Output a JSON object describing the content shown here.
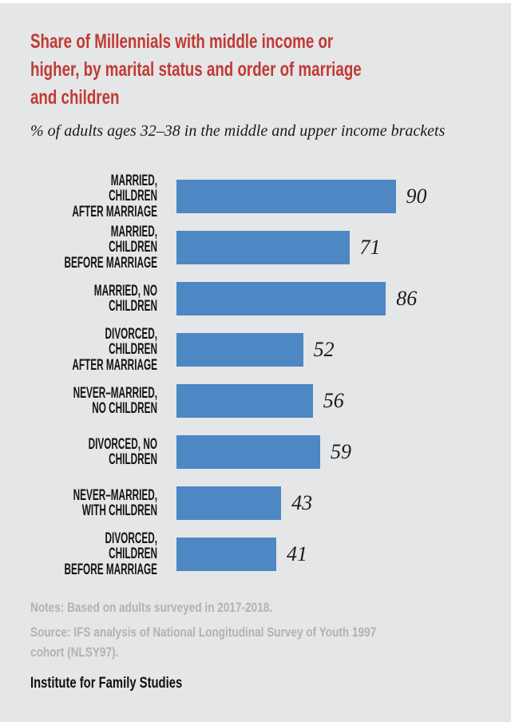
{
  "colors": {
    "background": "#e5e6e7",
    "top_strip": "#ffffff",
    "title": "#c03a35",
    "bar": "#4d87c4",
    "label_text": "#141414",
    "notes_text": "#b1b2b4"
  },
  "title": "Share of Millennials with middle income or\nhigher, by marital status and order of marriage\nand children",
  "subtitle": "% of adults ages 32–38 in the middle and upper income brackets",
  "chart_data": {
    "type": "bar",
    "orientation": "horizontal",
    "title": "Share of Millennials with middle income or higher, by marital status and order of marriage and children",
    "subtitle": "% of adults ages 32–38 in the middle and upper income brackets",
    "categories": [
      "MARRIED, CHILDREN\nAFTER MARRIAGE",
      "MARRIED, CHILDREN\nBEFORE MARRIAGE",
      "MARRIED, NO CHILDREN",
      "DIVORCED, CHILDREN\nAFTER MARRIAGE",
      "NEVER–MARRIED,\nNO CHILDREN",
      "DIVORCED, NO CHILDREN",
      "NEVER–MARRIED,\nWITH CHILDREN",
      "DIVORCED, CHILDREN\nBEFORE MARRIAGE"
    ],
    "values": [
      90,
      71,
      86,
      52,
      56,
      59,
      43,
      41
    ],
    "xlabel": "",
    "ylabel": "",
    "xlim": [
      0,
      100
    ],
    "grid": false,
    "legend": false,
    "bar_color": "#4d87c4",
    "value_labels_shown": true
  },
  "notes": "Notes: Based on adults surveyed in 2017-2018.",
  "source": "Source: IFS  analysis of National Longitudinal Survey of Youth 1997\ncohort (NLSY97).",
  "footer": "Institute for Family Studies"
}
